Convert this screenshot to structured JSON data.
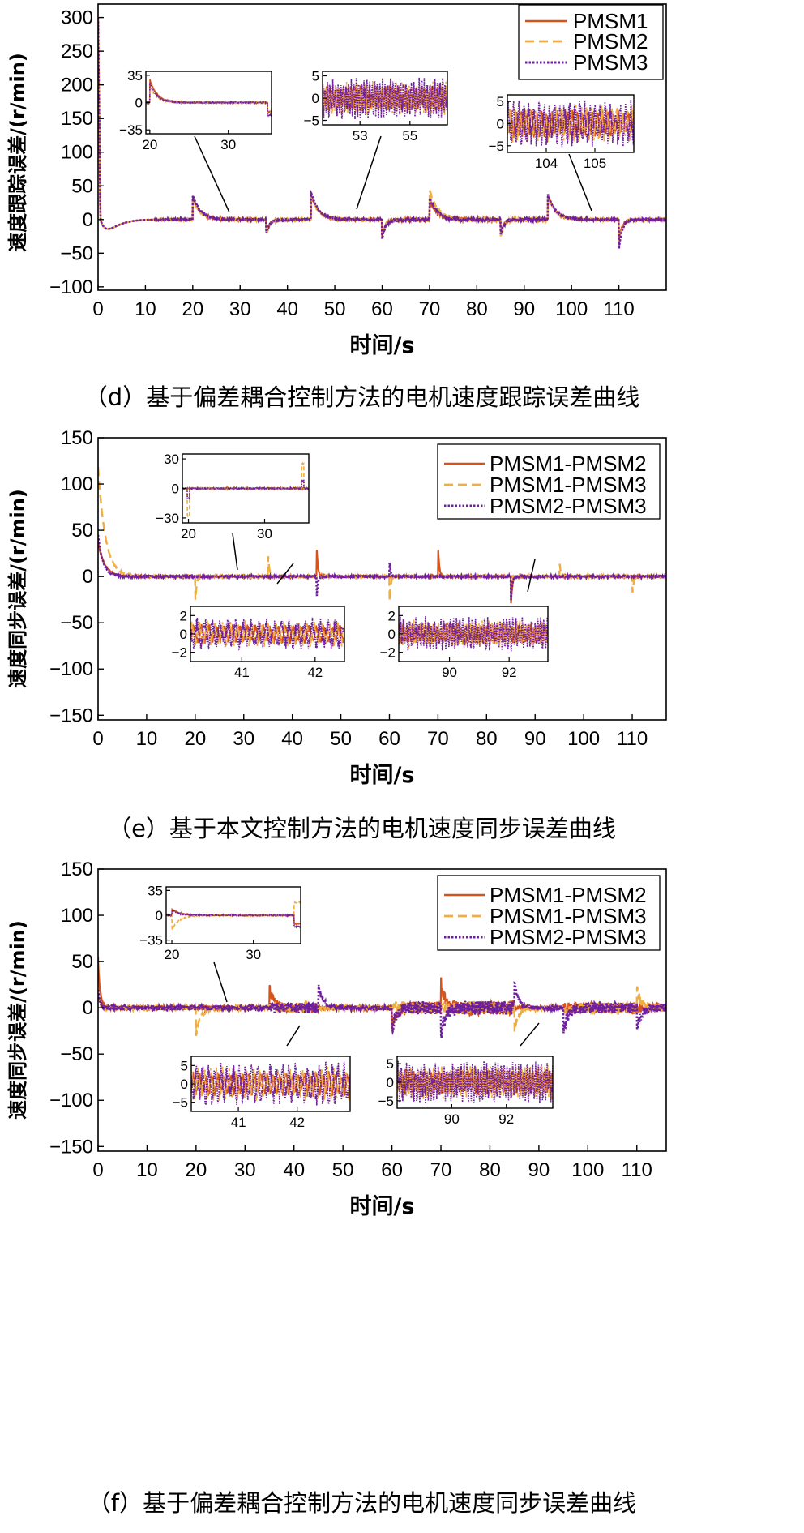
{
  "colors": {
    "s1": "#D4541C",
    "s2": "#EFAE42",
    "s3": "#6E1F9E"
  },
  "chart_data": [
    {
      "id": "d",
      "type": "line",
      "caption": "（d）基于偏差耦合控制方法的电机速度跟踪误差曲线",
      "xlabel": "时间/s",
      "ylabel": "速度跟踪误差/(r/min)",
      "xlim": [
        0,
        120
      ],
      "ylim": [
        -105,
        320
      ],
      "xticks": [
        0,
        10,
        20,
        30,
        40,
        50,
        60,
        70,
        80,
        90,
        100,
        110
      ],
      "xtick_labels": [
        "0",
        "10",
        "20",
        "30",
        "40",
        "50",
        "60",
        "70",
        "80",
        "90",
        "100",
        "110"
      ],
      "yticks": [
        -100,
        -50,
        0,
        50,
        100,
        150,
        200,
        250,
        300
      ],
      "ytick_labels": [
        "−100",
        "−50",
        "0",
        "50",
        "100",
        "150",
        "200",
        "250",
        "300"
      ],
      "legend": [
        "PMSM1",
        "PMSM2",
        "PMSM3"
      ],
      "legend_position": "top-right",
      "spikes": [
        [
          20,
          33,
          30,
          36
        ],
        [
          35.5,
          -20,
          -26,
          -22
        ],
        [
          45,
          36,
          35,
          40
        ],
        [
          60,
          -25,
          -22,
          -30
        ],
        [
          70,
          28,
          44,
          33
        ],
        [
          85,
          -20,
          -28,
          -24
        ],
        [
          95,
          37,
          36,
          38
        ],
        [
          110,
          -30,
          -38,
          -44
        ]
      ],
      "insets": [
        {
          "xlim": [
            19.5,
            35.5
          ],
          "ylim": [
            -40,
            40
          ],
          "yticks": [
            35,
            0,
            -35
          ],
          "ytick_labels": [
            "35",
            "0",
            "−35"
          ],
          "xticks": [
            20,
            30
          ],
          "xtick_labels": [
            "20",
            "30"
          ],
          "kind": "transient"
        },
        {
          "xlim": [
            51.5,
            56.5
          ],
          "ylim": [
            -6,
            6
          ],
          "yticks": [
            5,
            0,
            -5
          ],
          "ytick_labels": [
            "5",
            "0",
            "−5"
          ],
          "xticks": [
            53,
            55
          ],
          "xtick_labels": [
            "53",
            "55"
          ],
          "kind": "noise",
          "amp": 4
        },
        {
          "xlim": [
            103.2,
            105.8
          ],
          "ylim": [
            -6.5,
            6.5
          ],
          "yticks": [
            5,
            0,
            -5
          ],
          "ytick_labels": [
            "5",
            "0",
            "−5"
          ],
          "xticks": [
            104,
            105
          ],
          "xtick_labels": [
            "104",
            "105"
          ],
          "kind": "noise",
          "amp": 4.5
        }
      ]
    },
    {
      "id": "e",
      "type": "line",
      "caption": "（e）基于本文控制方法的电机速度同步误差曲线",
      "xlabel": "时间/s",
      "ylabel": "速度同步误差/(r/min)",
      "xlim": [
        0,
        117
      ],
      "ylim": [
        -155,
        150
      ],
      "xticks": [
        0,
        10,
        20,
        30,
        40,
        50,
        60,
        70,
        80,
        90,
        100,
        110
      ],
      "xtick_labels": [
        "0",
        "10",
        "20",
        "30",
        "40",
        "50",
        "60",
        "70",
        "80",
        "90",
        "100",
        "110"
      ],
      "yticks": [
        -150,
        -100,
        -50,
        0,
        50,
        100,
        150
      ],
      "ytick_labels": [
        "−150",
        "−100",
        "−50",
        "0",
        "50",
        "100",
        "150"
      ],
      "legend": [
        "PMSM1-PMSM2",
        "PMSM1-PMSM3",
        "PMSM2-PMSM3"
      ],
      "legend_position": "top-right",
      "spikes": [
        [
          20,
          0,
          -30,
          0
        ],
        [
          35,
          0,
          25,
          0
        ],
        [
          45,
          35,
          0,
          -25
        ],
        [
          60,
          0,
          -30,
          18
        ],
        [
          70,
          35,
          0,
          0
        ],
        [
          85,
          -35,
          0,
          -30
        ],
        [
          95,
          0,
          18,
          0
        ],
        [
          110,
          0,
          -22,
          0
        ]
      ],
      "insets": [
        {
          "xlim": [
            19.2,
            35.8
          ],
          "ylim": [
            -35,
            35
          ],
          "yticks": [
            30,
            0,
            -30
          ],
          "ytick_labels": [
            "30",
            "0",
            "−30"
          ],
          "xticks": [
            20,
            30
          ],
          "xtick_labels": [
            "20",
            "30"
          ],
          "kind": "spikes"
        },
        {
          "xlim": [
            40.3,
            42.4
          ],
          "ylim": [
            -3,
            3
          ],
          "yticks": [
            2,
            0,
            -2
          ],
          "ytick_labels": [
            "2",
            "0",
            "−2"
          ],
          "xticks": [
            41,
            42
          ],
          "xtick_labels": [
            "41",
            "42"
          ],
          "kind": "noise",
          "amp": 1.5
        },
        {
          "xlim": [
            88.3,
            93.3
          ],
          "ylim": [
            -3,
            3
          ],
          "yticks": [
            2,
            0,
            -2
          ],
          "ytick_labels": [
            "2",
            "0",
            "−2"
          ],
          "xticks": [
            90,
            92
          ],
          "xtick_labels": [
            "90",
            "92"
          ],
          "kind": "noise",
          "amp": 1.6
        }
      ]
    },
    {
      "id": "f",
      "type": "line",
      "caption": "（f）基于偏差耦合控制方法的电机速度同步误差曲线",
      "xlabel": "时间/s",
      "ylabel": "速度同步误差/(r/min)",
      "xlim": [
        0,
        116
      ],
      "ylim": [
        -155,
        150
      ],
      "xticks": [
        0,
        10,
        20,
        30,
        40,
        50,
        60,
        70,
        80,
        90,
        100,
        110
      ],
      "xtick_labels": [
        "0",
        "10",
        "20",
        "30",
        "40",
        "50",
        "60",
        "70",
        "80",
        "90",
        "100",
        "110"
      ],
      "yticks": [
        -150,
        -100,
        -50,
        0,
        50,
        100,
        150
      ],
      "ytick_labels": [
        "−150",
        "−100",
        "−50",
        "0",
        "50",
        "100",
        "150"
      ],
      "legend": [
        "PMSM1-PMSM2",
        "PMSM1-PMSM3",
        "PMSM2-PMSM3"
      ],
      "legend_position": "top-right",
      "spikes": [
        [
          20,
          0,
          -30,
          0
        ],
        [
          35,
          20,
          0,
          0
        ],
        [
          45,
          0,
          0,
          25
        ],
        [
          60,
          -20,
          0,
          -25
        ],
        [
          70,
          28,
          0,
          -30
        ],
        [
          85,
          0,
          -25,
          28
        ],
        [
          95,
          0,
          0,
          -25
        ],
        [
          110,
          0,
          20,
          -22
        ]
      ],
      "insets": [
        {
          "xlim": [
            19.3,
            35.8
          ],
          "ylim": [
            -40,
            40
          ],
          "yticks": [
            35,
            0,
            -35
          ],
          "ytick_labels": [
            "35",
            "0",
            "−35"
          ],
          "xticks": [
            20,
            30
          ],
          "xtick_labels": [
            "20",
            "30"
          ],
          "kind": "transient"
        },
        {
          "xlim": [
            40.2,
            42.9
          ],
          "ylim": [
            -7.5,
            7.5
          ],
          "yticks": [
            5,
            0,
            -5
          ],
          "ytick_labels": [
            "5",
            "0",
            "−5"
          ],
          "xticks": [
            41,
            42
          ],
          "xtick_labels": [
            "41",
            "42"
          ],
          "kind": "noise",
          "amp": 5
        },
        {
          "xlim": [
            88,
            93.7
          ],
          "ylim": [
            -7,
            7
          ],
          "yticks": [
            5,
            0,
            -5
          ],
          "ytick_labels": [
            "5",
            "0",
            "−5"
          ],
          "xticks": [
            90,
            92
          ],
          "xtick_labels": [
            "90",
            "92"
          ],
          "kind": "noise",
          "amp": 5
        }
      ]
    }
  ]
}
